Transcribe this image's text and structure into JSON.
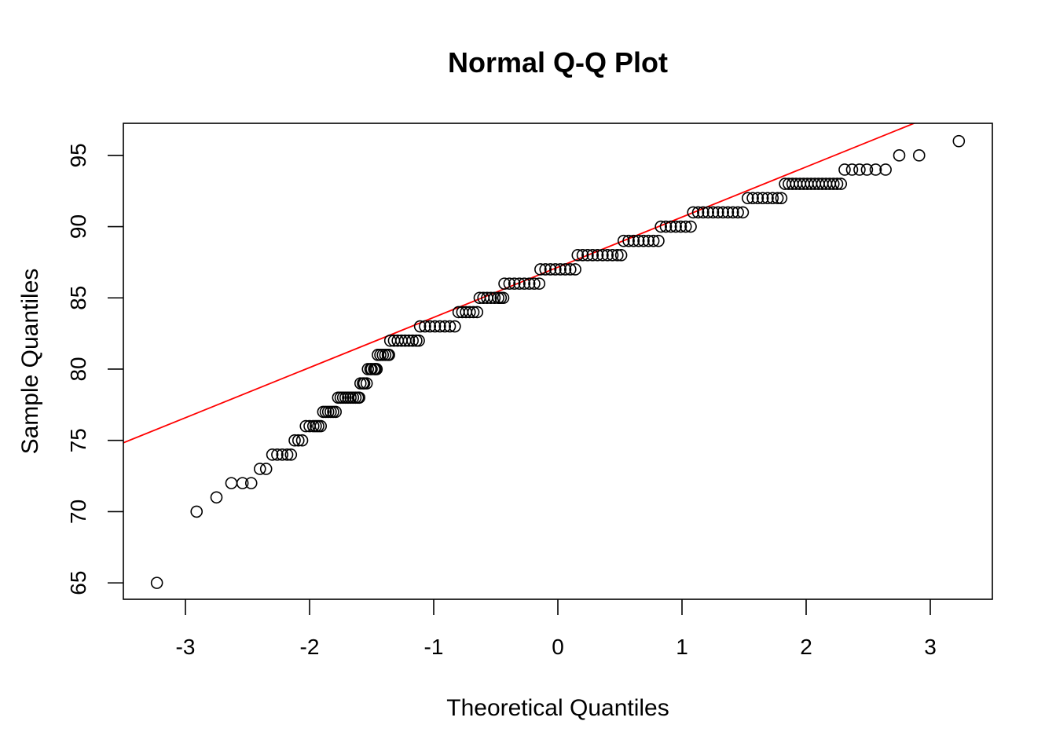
{
  "chart_data": {
    "type": "scatter",
    "title": "Normal Q-Q Plot",
    "xlabel": "Theoretical Quantiles",
    "ylabel": "Sample Quantiles",
    "xlim": [
      -3.5,
      3.5
    ],
    "ylim": [
      63.85,
      97.25
    ],
    "x_ticks": [
      -3,
      -2,
      -1,
      0,
      1,
      2,
      3
    ],
    "y_ticks": [
      65,
      70,
      75,
      80,
      85,
      90,
      95
    ],
    "grid": false,
    "point_style": "open-circle",
    "colors": {
      "points": "#000000",
      "reference_line": "#ff0000"
    },
    "reference_line": {
      "intercept": 87.15,
      "slope": 3.52
    },
    "points": [
      [
        -3.23,
        65
      ],
      [
        -2.91,
        70
      ],
      [
        -2.75,
        71
      ],
      [
        -2.63,
        72
      ],
      [
        -2.54,
        72
      ],
      [
        -2.47,
        72
      ],
      [
        -2.4,
        73
      ],
      [
        -2.35,
        73
      ],
      [
        -2.3,
        74
      ],
      [
        -2.26,
        74
      ],
      [
        -2.22,
        74
      ],
      [
        -2.18,
        74
      ],
      [
        -2.15,
        74
      ],
      [
        -2.12,
        75
      ],
      [
        -2.09,
        75
      ],
      [
        -2.06,
        75
      ],
      [
        -2.03,
        76
      ],
      [
        -2.0,
        76
      ],
      [
        -1.97,
        76
      ],
      [
        -1.95,
        76
      ],
      [
        -1.93,
        76
      ],
      [
        -1.91,
        76
      ],
      [
        -1.89,
        77
      ],
      [
        -1.87,
        77
      ],
      [
        -1.85,
        77
      ],
      [
        -1.83,
        77
      ],
      [
        -1.81,
        77
      ],
      [
        -1.79,
        77
      ],
      [
        -1.77,
        78
      ],
      [
        -1.75,
        78
      ],
      [
        -1.73,
        78
      ],
      [
        -1.71,
        78
      ],
      [
        -1.69,
        78
      ],
      [
        -1.67,
        78
      ],
      [
        -1.65,
        78
      ],
      [
        -1.63,
        78
      ],
      [
        -1.61,
        78
      ],
      [
        -1.6,
        78
      ],
      [
        -1.59,
        79
      ],
      [
        -1.57,
        79
      ],
      [
        -1.56,
        79
      ],
      [
        -1.54,
        79
      ],
      [
        -1.53,
        80
      ],
      [
        -1.51,
        80
      ],
      [
        -1.5,
        80
      ],
      [
        -1.48,
        80
      ],
      [
        -1.47,
        80
      ],
      [
        -1.46,
        80
      ],
      [
        -1.45,
        81
      ],
      [
        -1.43,
        81
      ],
      [
        -1.41,
        81
      ],
      [
        -1.39,
        81
      ],
      [
        -1.37,
        81
      ],
      [
        -1.36,
        81
      ],
      [
        -1.35,
        82
      ],
      [
        -1.32,
        82
      ],
      [
        -1.29,
        82
      ],
      [
        -1.26,
        82
      ],
      [
        -1.23,
        82
      ],
      [
        -1.2,
        82
      ],
      [
        -1.17,
        82
      ],
      [
        -1.14,
        82
      ],
      [
        -1.12,
        82
      ],
      [
        -1.11,
        83
      ],
      [
        -1.07,
        83
      ],
      [
        -1.03,
        83
      ],
      [
        -0.99,
        83
      ],
      [
        -0.95,
        83
      ],
      [
        -0.91,
        83
      ],
      [
        -0.87,
        83
      ],
      [
        -0.83,
        83
      ],
      [
        -0.8,
        84
      ],
      [
        -0.77,
        84
      ],
      [
        -0.74,
        84
      ],
      [
        -0.71,
        84
      ],
      [
        -0.68,
        84
      ],
      [
        -0.65,
        84
      ],
      [
        -0.63,
        85
      ],
      [
        -0.6,
        85
      ],
      [
        -0.57,
        85
      ],
      [
        -0.54,
        85
      ],
      [
        -0.51,
        85
      ],
      [
        -0.48,
        85
      ],
      [
        -0.46,
        85
      ],
      [
        -0.44,
        85
      ],
      [
        -0.43,
        86
      ],
      [
        -0.39,
        86
      ],
      [
        -0.35,
        86
      ],
      [
        -0.31,
        86
      ],
      [
        -0.27,
        86
      ],
      [
        -0.23,
        86
      ],
      [
        -0.19,
        86
      ],
      [
        -0.15,
        86
      ],
      [
        -0.14,
        87
      ],
      [
        -0.1,
        87
      ],
      [
        -0.06,
        87
      ],
      [
        -0.02,
        87
      ],
      [
        0.02,
        87
      ],
      [
        0.06,
        87
      ],
      [
        0.1,
        87
      ],
      [
        0.14,
        87
      ],
      [
        0.16,
        88
      ],
      [
        0.2,
        88
      ],
      [
        0.24,
        88
      ],
      [
        0.28,
        88
      ],
      [
        0.32,
        88
      ],
      [
        0.36,
        88
      ],
      [
        0.4,
        88
      ],
      [
        0.44,
        88
      ],
      [
        0.48,
        88
      ],
      [
        0.51,
        88
      ],
      [
        0.53,
        89
      ],
      [
        0.57,
        89
      ],
      [
        0.61,
        89
      ],
      [
        0.65,
        89
      ],
      [
        0.69,
        89
      ],
      [
        0.73,
        89
      ],
      [
        0.77,
        89
      ],
      [
        0.81,
        89
      ],
      [
        0.83,
        90
      ],
      [
        0.87,
        90
      ],
      [
        0.91,
        90
      ],
      [
        0.95,
        90
      ],
      [
        0.99,
        90
      ],
      [
        1.03,
        90
      ],
      [
        1.07,
        90
      ],
      [
        1.09,
        91
      ],
      [
        1.13,
        91
      ],
      [
        1.17,
        91
      ],
      [
        1.21,
        91
      ],
      [
        1.25,
        91
      ],
      [
        1.29,
        91
      ],
      [
        1.33,
        91
      ],
      [
        1.37,
        91
      ],
      [
        1.41,
        91
      ],
      [
        1.45,
        91
      ],
      [
        1.49,
        91
      ],
      [
        1.53,
        92
      ],
      [
        1.57,
        92
      ],
      [
        1.61,
        92
      ],
      [
        1.65,
        92
      ],
      [
        1.69,
        92
      ],
      [
        1.73,
        92
      ],
      [
        1.77,
        92
      ],
      [
        1.8,
        92
      ],
      [
        1.83,
        93
      ],
      [
        1.86,
        93
      ],
      [
        1.89,
        93
      ],
      [
        1.92,
        93
      ],
      [
        1.95,
        93
      ],
      [
        1.98,
        93
      ],
      [
        2.01,
        93
      ],
      [
        2.04,
        93
      ],
      [
        2.07,
        93
      ],
      [
        2.1,
        93
      ],
      [
        2.13,
        93
      ],
      [
        2.16,
        93
      ],
      [
        2.19,
        93
      ],
      [
        2.22,
        93
      ],
      [
        2.25,
        93
      ],
      [
        2.28,
        93
      ],
      [
        2.31,
        94
      ],
      [
        2.37,
        94
      ],
      [
        2.43,
        94
      ],
      [
        2.49,
        94
      ],
      [
        2.56,
        94
      ],
      [
        2.64,
        94
      ],
      [
        2.75,
        95
      ],
      [
        2.91,
        95
      ],
      [
        3.23,
        96
      ]
    ]
  }
}
